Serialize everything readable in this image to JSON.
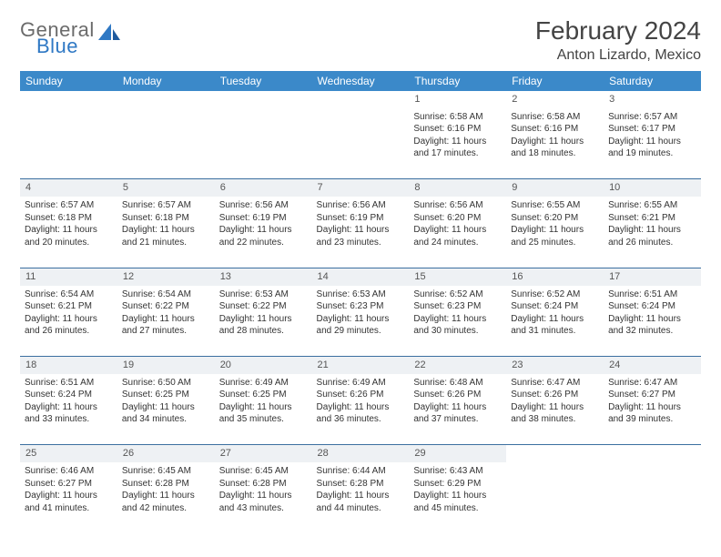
{
  "logo": {
    "text1": "General",
    "text2": "Blue",
    "color_general": "#6b6b6b",
    "color_blue": "#2f78c4"
  },
  "title": "February 2024",
  "location": "Anton Lizardo, Mexico",
  "header_bg": "#3b89c9",
  "header_fg": "#ffffff",
  "daynum_bg": "#eef1f4",
  "sep_color": "#3b6fa0",
  "body_bg": "#ffffff",
  "day_headers": [
    "Sunday",
    "Monday",
    "Tuesday",
    "Wednesday",
    "Thursday",
    "Friday",
    "Saturday"
  ],
  "weeks": [
    [
      null,
      null,
      null,
      null,
      {
        "n": "1",
        "sr": "6:58 AM",
        "ss": "6:16 PM",
        "dl": "11 hours and 17 minutes."
      },
      {
        "n": "2",
        "sr": "6:58 AM",
        "ss": "6:16 PM",
        "dl": "11 hours and 18 minutes."
      },
      {
        "n": "3",
        "sr": "6:57 AM",
        "ss": "6:17 PM",
        "dl": "11 hours and 19 minutes."
      }
    ],
    [
      {
        "n": "4",
        "sr": "6:57 AM",
        "ss": "6:18 PM",
        "dl": "11 hours and 20 minutes."
      },
      {
        "n": "5",
        "sr": "6:57 AM",
        "ss": "6:18 PM",
        "dl": "11 hours and 21 minutes."
      },
      {
        "n": "6",
        "sr": "6:56 AM",
        "ss": "6:19 PM",
        "dl": "11 hours and 22 minutes."
      },
      {
        "n": "7",
        "sr": "6:56 AM",
        "ss": "6:19 PM",
        "dl": "11 hours and 23 minutes."
      },
      {
        "n": "8",
        "sr": "6:56 AM",
        "ss": "6:20 PM",
        "dl": "11 hours and 24 minutes."
      },
      {
        "n": "9",
        "sr": "6:55 AM",
        "ss": "6:20 PM",
        "dl": "11 hours and 25 minutes."
      },
      {
        "n": "10",
        "sr": "6:55 AM",
        "ss": "6:21 PM",
        "dl": "11 hours and 26 minutes."
      }
    ],
    [
      {
        "n": "11",
        "sr": "6:54 AM",
        "ss": "6:21 PM",
        "dl": "11 hours and 26 minutes."
      },
      {
        "n": "12",
        "sr": "6:54 AM",
        "ss": "6:22 PM",
        "dl": "11 hours and 27 minutes."
      },
      {
        "n": "13",
        "sr": "6:53 AM",
        "ss": "6:22 PM",
        "dl": "11 hours and 28 minutes."
      },
      {
        "n": "14",
        "sr": "6:53 AM",
        "ss": "6:23 PM",
        "dl": "11 hours and 29 minutes."
      },
      {
        "n": "15",
        "sr": "6:52 AM",
        "ss": "6:23 PM",
        "dl": "11 hours and 30 minutes."
      },
      {
        "n": "16",
        "sr": "6:52 AM",
        "ss": "6:24 PM",
        "dl": "11 hours and 31 minutes."
      },
      {
        "n": "17",
        "sr": "6:51 AM",
        "ss": "6:24 PM",
        "dl": "11 hours and 32 minutes."
      }
    ],
    [
      {
        "n": "18",
        "sr": "6:51 AM",
        "ss": "6:24 PM",
        "dl": "11 hours and 33 minutes."
      },
      {
        "n": "19",
        "sr": "6:50 AM",
        "ss": "6:25 PM",
        "dl": "11 hours and 34 minutes."
      },
      {
        "n": "20",
        "sr": "6:49 AM",
        "ss": "6:25 PM",
        "dl": "11 hours and 35 minutes."
      },
      {
        "n": "21",
        "sr": "6:49 AM",
        "ss": "6:26 PM",
        "dl": "11 hours and 36 minutes."
      },
      {
        "n": "22",
        "sr": "6:48 AM",
        "ss": "6:26 PM",
        "dl": "11 hours and 37 minutes."
      },
      {
        "n": "23",
        "sr": "6:47 AM",
        "ss": "6:26 PM",
        "dl": "11 hours and 38 minutes."
      },
      {
        "n": "24",
        "sr": "6:47 AM",
        "ss": "6:27 PM",
        "dl": "11 hours and 39 minutes."
      }
    ],
    [
      {
        "n": "25",
        "sr": "6:46 AM",
        "ss": "6:27 PM",
        "dl": "11 hours and 41 minutes."
      },
      {
        "n": "26",
        "sr": "6:45 AM",
        "ss": "6:28 PM",
        "dl": "11 hours and 42 minutes."
      },
      {
        "n": "27",
        "sr": "6:45 AM",
        "ss": "6:28 PM",
        "dl": "11 hours and 43 minutes."
      },
      {
        "n": "28",
        "sr": "6:44 AM",
        "ss": "6:28 PM",
        "dl": "11 hours and 44 minutes."
      },
      {
        "n": "29",
        "sr": "6:43 AM",
        "ss": "6:29 PM",
        "dl": "11 hours and 45 minutes."
      },
      null,
      null
    ]
  ],
  "labels": {
    "sunrise": "Sunrise:",
    "sunset": "Sunset:",
    "daylight": "Daylight:"
  },
  "fonts": {
    "title_pt": 28,
    "location_pt": 16,
    "header_pt": 12,
    "daynum_pt": 11,
    "cell_pt": 10
  }
}
